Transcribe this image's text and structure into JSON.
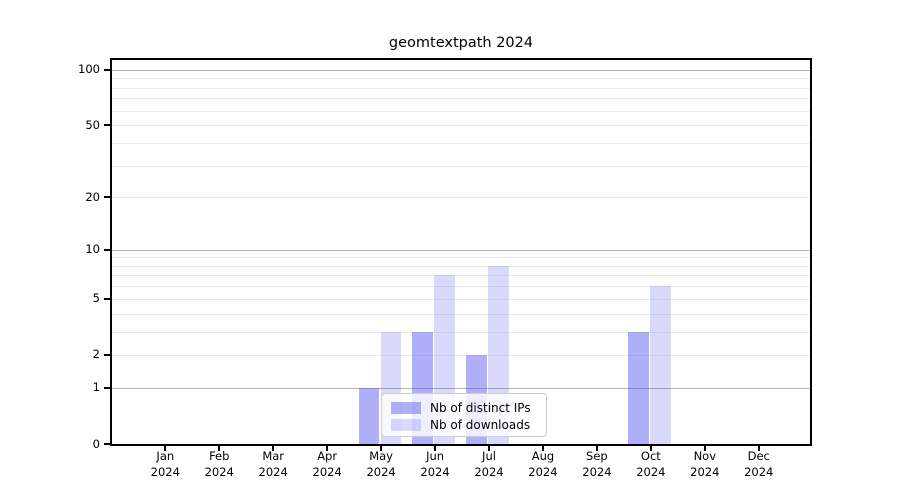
{
  "title": "geomtextpath 2024",
  "legend": {
    "items": [
      {
        "label": "Nb of distinct IPs"
      },
      {
        "label": "Nb of downloads"
      }
    ]
  },
  "chart_data": {
    "type": "bar",
    "title": "geomtextpath 2024",
    "categories": [
      "Jan 2024",
      "Feb 2024",
      "Mar 2024",
      "Apr 2024",
      "May 2024",
      "Jun 2024",
      "Jul 2024",
      "Aug 2024",
      "Sep 2024",
      "Oct 2024",
      "Nov 2024",
      "Dec 2024"
    ],
    "series": [
      {
        "name": "Nb of distinct IPs",
        "color": "rgba(80,80,240,0.45)",
        "values": [
          0,
          0,
          0,
          0,
          1,
          3,
          2,
          0,
          0,
          3,
          0,
          0
        ]
      },
      {
        "name": "Nb of downloads",
        "color": "rgba(80,80,240,0.22)",
        "values": [
          0,
          0,
          0,
          0,
          3,
          7,
          8,
          0,
          0,
          6,
          0,
          0
        ]
      }
    ],
    "xlabel": "",
    "ylabel": "",
    "yscale": "log1p",
    "ylim": [
      0,
      113
    ],
    "yticks": [
      0,
      1,
      2,
      5,
      10,
      20,
      50,
      100
    ],
    "grid_major": [
      1,
      10,
      100
    ],
    "grid_minor": [
      2,
      3,
      4,
      5,
      6,
      7,
      8,
      9,
      20,
      30,
      40,
      50,
      60,
      70,
      80,
      90
    ],
    "grid_major_color": "#b5b5b5",
    "grid_minor_color": "#e9e9e9",
    "axis_color": "#000000",
    "legend_position": "lower center inside"
  }
}
